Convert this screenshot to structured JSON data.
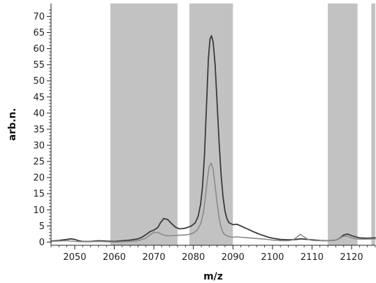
{
  "chart_data": {
    "type": "line",
    "title": "",
    "xlabel": "m/z",
    "ylabel": "arb.n.",
    "xlim": [
      2044,
      2126
    ],
    "ylim": [
      -1,
      74
    ],
    "x_ticks": [
      2050,
      2060,
      2070,
      2080,
      2090,
      2100,
      2110,
      2120
    ],
    "y_ticks": [
      0,
      5,
      10,
      15,
      20,
      25,
      30,
      35,
      40,
      45,
      50,
      55,
      60,
      65,
      70
    ],
    "grid": false,
    "legend": "none",
    "shaded_regions": [
      {
        "x0": 2059,
        "x1": 2076
      },
      {
        "x0": 2079,
        "x1": 2090
      },
      {
        "x0": 2114,
        "x1": 2121.5
      },
      {
        "x0": 2125,
        "x1": 2126
      }
    ],
    "colors": {
      "shade": "#c2c2c2",
      "series_dark": "#3a3a3a",
      "series_light": "#8a8a8a",
      "axis": "#222222"
    },
    "series": [
      {
        "x": [
          2044,
          2046,
          2048,
          2049,
          2050,
          2051,
          2052,
          2054,
          2056,
          2058,
          2060,
          2062,
          2064,
          2066,
          2067,
          2068,
          2069,
          2070,
          2071,
          2071.7,
          2072.5,
          2073.5,
          2074.5,
          2075.5,
          2076.5,
          2077.5,
          2078.5,
          2079.5,
          2080.5,
          2081.2,
          2081.8,
          2082.3,
          2082.8,
          2083.3,
          2083.8,
          2084.2,
          2084.6,
          2085,
          2085.5,
          2086,
          2086.5,
          2087,
          2087.5,
          2088,
          2088.5,
          2089,
          2090,
          2091,
          2092,
          2093,
          2094,
          2095,
          2096,
          2097,
          2098,
          2099,
          2100,
          2102,
          2104,
          2106,
          2107,
          2108,
          2110,
          2112,
          2114,
          2116,
          2117,
          2118,
          2119,
          2120,
          2121,
          2122,
          2124,
          2126
        ],
        "y": [
          0.3,
          0.5,
          0.8,
          1.0,
          0.8,
          0.4,
          0.2,
          0.2,
          0.4,
          0.3,
          0.2,
          0.4,
          0.6,
          1.0,
          1.5,
          2.3,
          3.2,
          3.7,
          4.5,
          6.0,
          7.3,
          7.0,
          5.7,
          4.6,
          4.1,
          4.2,
          4.5,
          5.0,
          6.0,
          8.0,
          11.5,
          17.0,
          27.0,
          42.0,
          57.0,
          63.0,
          64.0,
          62.0,
          55.0,
          43.0,
          31.0,
          21.0,
          14.0,
          9.5,
          7.2,
          6.0,
          5.4,
          5.5,
          5.0,
          4.4,
          3.9,
          3.3,
          2.8,
          2.3,
          1.9,
          1.5,
          1.2,
          0.8,
          0.7,
          0.8,
          1.0,
          0.9,
          0.7,
          0.5,
          0.4,
          0.6,
          1.2,
          2.2,
          2.5,
          2.0,
          1.6,
          1.3,
          1.2,
          1.3
        ]
      },
      {
        "x": [
          2044,
          2046,
          2048,
          2050,
          2052,
          2054,
          2056,
          2058,
          2060,
          2062,
          2064,
          2066,
          2068,
          2069,
          2070,
          2071,
          2072,
          2073,
          2074,
          2075,
          2076,
          2078,
          2079,
          2080,
          2081,
          2081.8,
          2082.5,
          2083,
          2083.5,
          2084,
          2084.5,
          2085,
          2085.5,
          2086,
          2086.5,
          2087,
          2087.5,
          2088,
          2089,
          2090,
          2091,
          2092,
          2094,
          2096,
          2098,
          2100,
          2102,
          2104,
          2105,
          2106,
          2107,
          2108,
          2109,
          2110,
          2112,
          2114,
          2116,
          2117,
          2118,
          2119,
          2120,
          2121,
          2122,
          2124,
          2126
        ],
        "y": [
          0.2,
          0.3,
          0.4,
          0.2,
          0.1,
          0.1,
          0.2,
          0.1,
          0.0,
          0.1,
          0.2,
          0.4,
          1.2,
          2.2,
          3.0,
          3.0,
          2.4,
          2.0,
          1.9,
          2.0,
          2.1,
          2.2,
          2.4,
          2.8,
          3.8,
          5.5,
          9.0,
          13.5,
          19.0,
          23.5,
          24.5,
          22.5,
          17.5,
          12.0,
          7.5,
          4.6,
          3.0,
          2.2,
          1.7,
          1.5,
          1.6,
          1.5,
          1.3,
          1.1,
          0.9,
          0.6,
          0.4,
          0.4,
          0.6,
          1.3,
          2.4,
          1.6,
          0.8,
          0.5,
          0.4,
          0.4,
          0.6,
          1.2,
          1.8,
          1.8,
          1.3,
          1.0,
          0.9,
          0.9,
          1.0
        ]
      }
    ]
  }
}
